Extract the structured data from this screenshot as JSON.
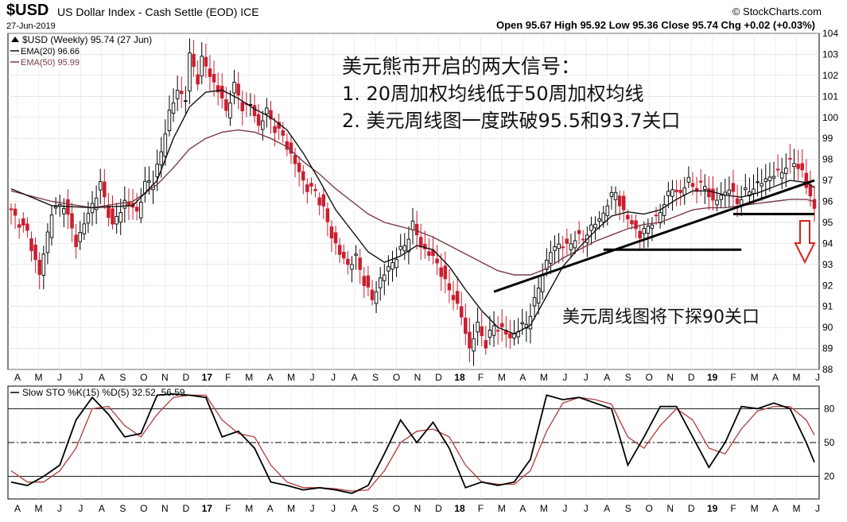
{
  "header": {
    "symbol": "$USD",
    "description": "US Dollar Index - Cash Settle (EOD) ICE",
    "logo": "© StockCharts.com",
    "date": "27-Jun-2019",
    "ohlc": "Open 95.67  High 95.92  Low 95.36  Close 95.74  Chg +0.02 (+0.03%)"
  },
  "chart_data": [
    {
      "type": "candlestick",
      "legend": {
        "main": "$USD (Weekly) 95.74 (27 Jun)",
        "ema20": "EMA(20) 96.66",
        "ema50": "EMA(50) 95.99"
      },
      "ylim": [
        88,
        104
      ],
      "y_ticks": [
        "104",
        "103",
        "102",
        "101",
        "100",
        "99",
        "98",
        "97",
        "96",
        "95",
        "94",
        "93",
        "92",
        "91",
        "90",
        "89",
        "88"
      ],
      "x_ticks": [
        "A",
        "M",
        "J",
        "J",
        "A",
        "S",
        "O",
        "N",
        "D",
        "17",
        "F",
        "M",
        "A",
        "M",
        "J",
        "J",
        "A",
        "S",
        "O",
        "N",
        "D",
        "18",
        "F",
        "M",
        "A",
        "M",
        "J",
        "J",
        "A",
        "S",
        "O",
        "N",
        "D",
        "19",
        "F",
        "M",
        "A",
        "M",
        "J"
      ],
      "close_path": [
        [
          0,
          95.5
        ],
        [
          4,
          94.5
        ],
        [
          7,
          92.5
        ],
        [
          10,
          95.5
        ],
        [
          13,
          95.9
        ],
        [
          16,
          94.0
        ],
        [
          19,
          95.4
        ],
        [
          22,
          96.8
        ],
        [
          25,
          94.8
        ],
        [
          28,
          96.0
        ],
        [
          31,
          95.5
        ],
        [
          33,
          96.8
        ],
        [
          35,
          97.0
        ],
        [
          37,
          98.3
        ],
        [
          39,
          100.3
        ],
        [
          41,
          101.2
        ],
        [
          43,
          101.0
        ],
        [
          44,
          102.9
        ],
        [
          46,
          101.8
        ],
        [
          47,
          102.8
        ],
        [
          49,
          102.0
        ],
        [
          51,
          101.3
        ],
        [
          53,
          100.3
        ],
        [
          55,
          101.5
        ],
        [
          57,
          100.5
        ],
        [
          59,
          100.6
        ],
        [
          61,
          99.6
        ],
        [
          63,
          100.3
        ],
        [
          65,
          99.5
        ],
        [
          67,
          99.1
        ],
        [
          69,
          98.2
        ],
        [
          71,
          97.4
        ],
        [
          73,
          96.6
        ],
        [
          75,
          96.5
        ],
        [
          77,
          95.6
        ],
        [
          79,
          94.4
        ],
        [
          81,
          93.5
        ],
        [
          83,
          93.0
        ],
        [
          85,
          93.3
        ],
        [
          87,
          92.2
        ],
        [
          89,
          91.3
        ],
        [
          91,
          92.3
        ],
        [
          93,
          92.8
        ],
        [
          95,
          93.4
        ],
        [
          97,
          93.9
        ],
        [
          99,
          94.9
        ],
        [
          101,
          93.9
        ],
        [
          103,
          93.5
        ],
        [
          105,
          93.1
        ],
        [
          107,
          92.1
        ],
        [
          109,
          91.5
        ],
        [
          111,
          90.5
        ],
        [
          113,
          89.0
        ],
        [
          115,
          90.1
        ],
        [
          117,
          89.2
        ],
        [
          119,
          90.1
        ],
        [
          121,
          89.9
        ],
        [
          123,
          89.5
        ],
        [
          125,
          89.9
        ],
        [
          127,
          90.2
        ],
        [
          129,
          91.2
        ],
        [
          131,
          92.6
        ],
        [
          133,
          93.6
        ],
        [
          135,
          94.0
        ],
        [
          137,
          93.8
        ],
        [
          139,
          94.3
        ],
        [
          141,
          94.2
        ],
        [
          143,
          94.8
        ],
        [
          145,
          95.1
        ],
        [
          147,
          95.9
        ],
        [
          149,
          96.5
        ],
        [
          151,
          95.4
        ],
        [
          153,
          95.0
        ],
        [
          155,
          94.3
        ],
        [
          157,
          94.9
        ],
        [
          159,
          95.1
        ],
        [
          161,
          96.0
        ],
        [
          163,
          96.6
        ],
        [
          165,
          96.4
        ],
        [
          167,
          97.0
        ],
        [
          169,
          96.6
        ],
        [
          171,
          96.8
        ],
        [
          173,
          95.9
        ],
        [
          175,
          96.3
        ],
        [
          177,
          96.6
        ],
        [
          179,
          96.0
        ],
        [
          181,
          96.4
        ],
        [
          183,
          96.7
        ],
        [
          185,
          96.9
        ],
        [
          187,
          97.2
        ],
        [
          189,
          97.3
        ],
        [
          191,
          97.7
        ],
        [
          193,
          97.9
        ],
        [
          195,
          97.4
        ],
        [
          196,
          96.7
        ],
        [
          197,
          96.2
        ],
        [
          198,
          95.74
        ]
      ],
      "ema20_path": [
        [
          0,
          96.6
        ],
        [
          10,
          95.8
        ],
        [
          20,
          95.7
        ],
        [
          30,
          95.8
        ],
        [
          36,
          97.0
        ],
        [
          40,
          99.0
        ],
        [
          44,
          100.5
        ],
        [
          48,
          101.2
        ],
        [
          52,
          101.3
        ],
        [
          56,
          100.9
        ],
        [
          60,
          100.4
        ],
        [
          64,
          100.0
        ],
        [
          68,
          99.4
        ],
        [
          72,
          98.3
        ],
        [
          76,
          97.0
        ],
        [
          80,
          95.6
        ],
        [
          84,
          94.6
        ],
        [
          88,
          93.6
        ],
        [
          92,
          93.1
        ],
        [
          96,
          93.4
        ],
        [
          100,
          93.9
        ],
        [
          104,
          93.7
        ],
        [
          108,
          92.9
        ],
        [
          112,
          91.8
        ],
        [
          116,
          90.8
        ],
        [
          120,
          90.0
        ],
        [
          124,
          89.7
        ],
        [
          128,
          90.1
        ],
        [
          132,
          91.5
        ],
        [
          136,
          92.9
        ],
        [
          140,
          93.8
        ],
        [
          144,
          94.6
        ],
        [
          148,
          95.3
        ],
        [
          152,
          95.5
        ],
        [
          156,
          95.4
        ],
        [
          160,
          95.6
        ],
        [
          164,
          96.1
        ],
        [
          168,
          96.5
        ],
        [
          172,
          96.5
        ],
        [
          176,
          96.3
        ],
        [
          180,
          96.2
        ],
        [
          184,
          96.4
        ],
        [
          188,
          96.7
        ],
        [
          192,
          97.0
        ],
        [
          196,
          96.9
        ],
        [
          198,
          96.66
        ]
      ],
      "ema50_path": [
        [
          0,
          96.5
        ],
        [
          10,
          96.0
        ],
        [
          20,
          95.7
        ],
        [
          30,
          96.0
        ],
        [
          36,
          96.8
        ],
        [
          40,
          97.6
        ],
        [
          44,
          98.5
        ],
        [
          48,
          99.0
        ],
        [
          52,
          99.3
        ],
        [
          56,
          99.4
        ],
        [
          60,
          99.3
        ],
        [
          64,
          99.0
        ],
        [
          68,
          98.6
        ],
        [
          72,
          97.9
        ],
        [
          76,
          97.3
        ],
        [
          80,
          96.6
        ],
        [
          84,
          96.0
        ],
        [
          88,
          95.4
        ],
        [
          92,
          95.0
        ],
        [
          96,
          94.8
        ],
        [
          100,
          94.6
        ],
        [
          104,
          94.3
        ],
        [
          108,
          93.9
        ],
        [
          112,
          93.5
        ],
        [
          116,
          93.1
        ],
        [
          120,
          92.7
        ],
        [
          124,
          92.5
        ],
        [
          128,
          92.5
        ],
        [
          132,
          92.8
        ],
        [
          136,
          93.3
        ],
        [
          140,
          93.7
        ],
        [
          144,
          94.1
        ],
        [
          148,
          94.4
        ],
        [
          152,
          94.7
        ],
        [
          156,
          94.9
        ],
        [
          160,
          95.0
        ],
        [
          164,
          95.3
        ],
        [
          168,
          95.6
        ],
        [
          172,
          95.7
        ],
        [
          176,
          95.7
        ],
        [
          180,
          95.8
        ],
        [
          184,
          95.9
        ],
        [
          188,
          96.0
        ],
        [
          192,
          96.1
        ],
        [
          196,
          96.1
        ],
        [
          198,
          95.99
        ]
      ],
      "annotations": {
        "title": "美元熊市开启的两大信号：",
        "line1": "1.  20周加权均线低于50周加权均线",
        "line2": "2.  美元周线图一度跌破95.5和93.7关口",
        "bottom": "美元周线图将下探90关口"
      },
      "trendline": [
        [
          119,
          91.7
        ],
        [
          198,
          97.0
        ]
      ],
      "support_lines": [
        [
          146,
          93.7
        ],
        [
          180,
          93.7
        ],
        [
          178,
          95.4
        ],
        [
          198,
          95.4
        ]
      ],
      "colors": {
        "up": "#000000",
        "down": "#cc1e2e",
        "ema20": "#111111",
        "ema50": "#7a3b45",
        "support": "#000000",
        "arrow": "#d62020"
      }
    },
    {
      "type": "line",
      "legend": "Slow STO %K(15) %D(5) 32.52, 56.59",
      "ylim": [
        0,
        100
      ],
      "levels": [
        80,
        50,
        20
      ],
      "y_ticks": [
        "80",
        "50",
        "20"
      ],
      "k_path": [
        [
          0,
          15
        ],
        [
          4,
          12
        ],
        [
          8,
          20
        ],
        [
          12,
          30
        ],
        [
          16,
          70
        ],
        [
          20,
          90
        ],
        [
          24,
          75
        ],
        [
          28,
          55
        ],
        [
          32,
          58
        ],
        [
          36,
          92
        ],
        [
          40,
          93
        ],
        [
          44,
          92
        ],
        [
          48,
          90
        ],
        [
          52,
          55
        ],
        [
          56,
          60
        ],
        [
          60,
          45
        ],
        [
          64,
          15
        ],
        [
          68,
          12
        ],
        [
          72,
          8
        ],
        [
          76,
          10
        ],
        [
          80,
          8
        ],
        [
          84,
          5
        ],
        [
          88,
          12
        ],
        [
          92,
          40
        ],
        [
          96,
          70
        ],
        [
          100,
          50
        ],
        [
          104,
          68
        ],
        [
          108,
          45
        ],
        [
          112,
          10
        ],
        [
          116,
          15
        ],
        [
          120,
          12
        ],
        [
          124,
          15
        ],
        [
          128,
          35
        ],
        [
          132,
          92
        ],
        [
          136,
          88
        ],
        [
          140,
          90
        ],
        [
          144,
          85
        ],
        [
          148,
          80
        ],
        [
          152,
          30
        ],
        [
          156,
          55
        ],
        [
          160,
          82
        ],
        [
          164,
          82
        ],
        [
          168,
          55
        ],
        [
          172,
          28
        ],
        [
          176,
          50
        ],
        [
          180,
          82
        ],
        [
          184,
          80
        ],
        [
          188,
          85
        ],
        [
          192,
          80
        ],
        [
          196,
          50
        ],
        [
          198,
          32.52
        ]
      ],
      "d_path": [
        [
          0,
          25
        ],
        [
          4,
          15
        ],
        [
          8,
          15
        ],
        [
          12,
          25
        ],
        [
          16,
          45
        ],
        [
          20,
          80
        ],
        [
          24,
          82
        ],
        [
          28,
          65
        ],
        [
          32,
          55
        ],
        [
          36,
          75
        ],
        [
          40,
          90
        ],
        [
          44,
          92
        ],
        [
          48,
          92
        ],
        [
          52,
          70
        ],
        [
          56,
          58
        ],
        [
          60,
          55
        ],
        [
          64,
          30
        ],
        [
          68,
          15
        ],
        [
          72,
          10
        ],
        [
          76,
          10
        ],
        [
          80,
          9
        ],
        [
          84,
          7
        ],
        [
          88,
          8
        ],
        [
          92,
          25
        ],
        [
          96,
          50
        ],
        [
          100,
          60
        ],
        [
          104,
          62
        ],
        [
          108,
          55
        ],
        [
          112,
          30
        ],
        [
          116,
          15
        ],
        [
          120,
          13
        ],
        [
          124,
          13
        ],
        [
          128,
          25
        ],
        [
          132,
          60
        ],
        [
          136,
          85
        ],
        [
          140,
          90
        ],
        [
          144,
          88
        ],
        [
          148,
          84
        ],
        [
          152,
          55
        ],
        [
          156,
          45
        ],
        [
          160,
          65
        ],
        [
          164,
          80
        ],
        [
          168,
          70
        ],
        [
          172,
          45
        ],
        [
          176,
          40
        ],
        [
          180,
          62
        ],
        [
          184,
          78
        ],
        [
          188,
          82
        ],
        [
          192,
          82
        ],
        [
          196,
          70
        ],
        [
          198,
          56.59
        ]
      ],
      "colors": {
        "k": "#000000",
        "d": "#b03a3a"
      }
    }
  ]
}
